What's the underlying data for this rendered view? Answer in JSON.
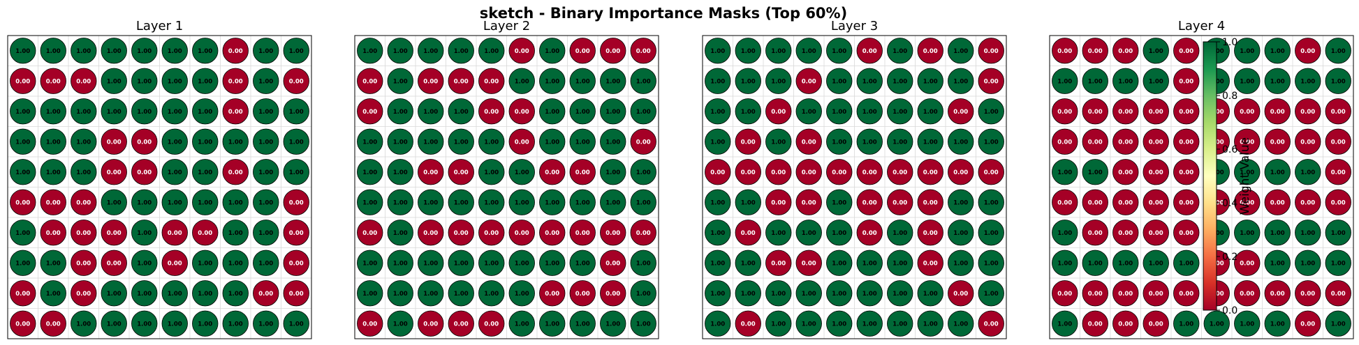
{
  "figure": {
    "suptitle": "sketch - Binary Importance Masks (Top 60%)",
    "colors": {
      "one": "#006837",
      "zero": "#a50026",
      "grid": "#d9d9d9",
      "frame": "#000000",
      "label_on_one": "#000000",
      "label_on_zero": "#ffffff"
    },
    "colorbar": {
      "label": "Weight Value",
      "range": [
        0.0,
        1.0
      ],
      "ticks": [
        "0.0",
        "0.2",
        "0.4",
        "0.6",
        "0.8",
        "1.0"
      ],
      "colormap": "RdYlGn",
      "stops": [
        "#a50026",
        "#d73027",
        "#f46d43",
        "#fdae61",
        "#fee08b",
        "#ffffbf",
        "#d9ef8b",
        "#a6d96a",
        "#66bd63",
        "#1a9850",
        "#006837"
      ]
    }
  },
  "chart_data": [
    {
      "type": "heatmap",
      "title": "Layer 1",
      "value_format": "0.00",
      "grid": true,
      "matrix": [
        [
          1,
          1,
          1,
          1,
          1,
          1,
          1,
          0,
          1,
          1
        ],
        [
          0,
          0,
          0,
          1,
          1,
          1,
          1,
          0,
          1,
          0
        ],
        [
          1,
          1,
          1,
          1,
          1,
          1,
          1,
          0,
          1,
          1
        ],
        [
          1,
          1,
          1,
          0,
          0,
          1,
          1,
          1,
          1,
          1
        ],
        [
          1,
          1,
          1,
          0,
          0,
          1,
          1,
          0,
          1,
          1
        ],
        [
          0,
          0,
          0,
          1,
          1,
          1,
          1,
          1,
          1,
          0
        ],
        [
          1,
          0,
          0,
          0,
          1,
          0,
          0,
          1,
          1,
          0
        ],
        [
          1,
          1,
          0,
          0,
          1,
          0,
          1,
          1,
          1,
          0
        ],
        [
          0,
          1,
          0,
          1,
          1,
          1,
          1,
          1,
          0,
          0
        ],
        [
          0,
          0,
          1,
          1,
          1,
          1,
          1,
          1,
          1,
          1
        ]
      ]
    },
    {
      "type": "heatmap",
      "title": "Layer 2",
      "value_format": "0.00",
      "grid": true,
      "matrix": [
        [
          1,
          1,
          1,
          1,
          1,
          0,
          1,
          0,
          0,
          0
        ],
        [
          0,
          1,
          0,
          0,
          0,
          1,
          1,
          1,
          1,
          1
        ],
        [
          0,
          1,
          1,
          1,
          0,
          0,
          1,
          1,
          1,
          1
        ],
        [
          1,
          1,
          1,
          1,
          1,
          0,
          1,
          1,
          1,
          0
        ],
        [
          1,
          1,
          0,
          0,
          1,
          1,
          0,
          0,
          1,
          1
        ],
        [
          1,
          1,
          1,
          1,
          1,
          1,
          1,
          1,
          1,
          1
        ],
        [
          0,
          1,
          0,
          0,
          0,
          0,
          0,
          0,
          0,
          0
        ],
        [
          1,
          1,
          1,
          1,
          1,
          1,
          1,
          1,
          0,
          1
        ],
        [
          1,
          1,
          1,
          1,
          1,
          1,
          0,
          0,
          0,
          1
        ],
        [
          0,
          1,
          0,
          0,
          0,
          1,
          1,
          1,
          1,
          1
        ]
      ]
    },
    {
      "type": "heatmap",
      "title": "Layer 3",
      "value_format": "0.00",
      "grid": true,
      "matrix": [
        [
          1,
          1,
          1,
          1,
          1,
          0,
          1,
          0,
          1,
          0
        ],
        [
          1,
          1,
          1,
          0,
          1,
          1,
          1,
          1,
          1,
          0
        ],
        [
          1,
          1,
          0,
          1,
          1,
          1,
          1,
          1,
          0,
          1
        ],
        [
          1,
          0,
          1,
          0,
          1,
          1,
          1,
          1,
          1,
          1
        ],
        [
          0,
          0,
          0,
          0,
          0,
          0,
          0,
          0,
          0,
          0
        ],
        [
          1,
          1,
          0,
          0,
          1,
          0,
          0,
          0,
          1,
          1
        ],
        [
          1,
          0,
          1,
          1,
          1,
          0,
          1,
          0,
          1,
          1
        ],
        [
          1,
          1,
          0,
          0,
          1,
          1,
          1,
          0,
          1,
          1
        ],
        [
          1,
          1,
          1,
          1,
          1,
          1,
          1,
          1,
          0,
          1
        ],
        [
          1,
          0,
          1,
          1,
          1,
          1,
          1,
          1,
          1,
          0
        ]
      ]
    },
    {
      "type": "heatmap",
      "title": "Layer 4",
      "value_format": "0.00",
      "grid": true,
      "matrix": [
        [
          0,
          0,
          0,
          1,
          0,
          1,
          1,
          1,
          0,
          1
        ],
        [
          1,
          1,
          1,
          1,
          0,
          1,
          1,
          1,
          1,
          1
        ],
        [
          0,
          0,
          0,
          0,
          0,
          0,
          0,
          0,
          0,
          0
        ],
        [
          0,
          0,
          0,
          0,
          0,
          0,
          0,
          0,
          0,
          0
        ],
        [
          1,
          1,
          0,
          0,
          0,
          1,
          1,
          1,
          1,
          0
        ],
        [
          0,
          0,
          0,
          0,
          0,
          0,
          0,
          0,
          0,
          0
        ],
        [
          1,
          0,
          0,
          0,
          0,
          1,
          1,
          1,
          1,
          1
        ],
        [
          1,
          1,
          1,
          1,
          1,
          0,
          0,
          1,
          1,
          1
        ],
        [
          0,
          0,
          0,
          0,
          0,
          0,
          0,
          0,
          0,
          0
        ],
        [
          1,
          0,
          0,
          0,
          1,
          1,
          1,
          1,
          0,
          1
        ]
      ]
    }
  ]
}
